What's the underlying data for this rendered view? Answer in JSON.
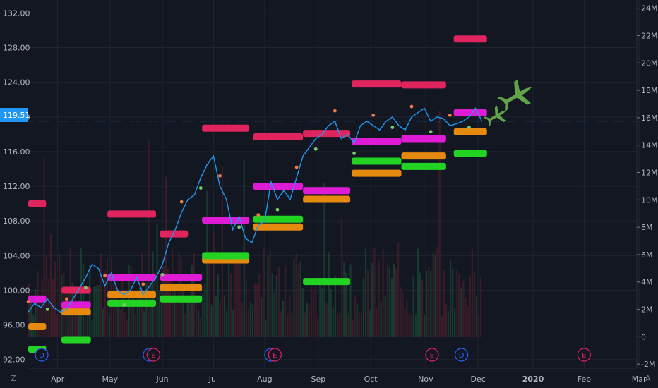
{
  "chart_data": {
    "type": "line",
    "y_left_ticks": [
      "132.00",
      "128.00",
      "124.00",
      "120.00",
      "116.00",
      "112.00",
      "108.00",
      "104.00",
      "100.00",
      "96.00",
      "92.00"
    ],
    "y_left_range": [
      91.0,
      133.5
    ],
    "y_right_ticks": [
      "24M",
      "22M",
      "20M",
      "18M",
      "16M",
      "14M",
      "12M",
      "10M",
      "8M",
      "6M",
      "4M",
      "2M",
      "0",
      "-2M"
    ],
    "y_right_range": [
      -2.3,
      24.6
    ],
    "x_months": [
      "Apr",
      "May",
      "Jun",
      "Jul",
      "Aug",
      "Sep",
      "Oct",
      "Nov",
      "Dec",
      "2020",
      "Feb",
      "Mar"
    ],
    "last_price_label": "119.51",
    "last_price": 119.51,
    "corner_left": "Z",
    "corner_right": "A",
    "events": [
      {
        "label": "D",
        "t": 10.5,
        "color": "#2962ff"
      },
      {
        "label": "D",
        "t": 95.0,
        "color": "#2962ff"
      },
      {
        "label": "E",
        "t": 98.0,
        "color": "#e91e63"
      },
      {
        "label": "D",
        "t": 190.0,
        "color": "#2962ff"
      },
      {
        "label": "E",
        "t": 193.0,
        "color": "#e91e63"
      },
      {
        "label": "E",
        "t": 316.0,
        "color": "#e91e63"
      },
      {
        "label": "D",
        "t": 339.0,
        "color": "#2962ff"
      },
      {
        "label": "E",
        "t": 435.0,
        "color": "#e91e63"
      }
    ],
    "price_series": {
      "color": "#2196f3",
      "t": [
        0,
        5,
        10,
        15,
        20,
        25,
        30,
        35,
        40,
        45,
        50,
        55,
        60,
        65,
        70,
        75,
        80,
        85,
        90,
        95,
        100,
        105,
        110,
        115,
        120,
        125,
        130,
        135,
        140,
        145,
        150,
        155,
        160,
        165,
        170,
        175,
        180,
        185,
        190,
        195,
        200,
        205,
        210,
        215,
        220,
        225,
        230,
        235,
        240,
        245,
        250,
        255,
        260,
        265,
        270,
        275,
        280,
        285,
        290,
        295,
        300,
        305,
        310,
        315,
        320,
        325,
        330,
        335,
        340,
        345,
        350,
        355
      ],
      "values": [
        97.5,
        98.5,
        98.0,
        99.0,
        98.0,
        97.5,
        97.8,
        99.0,
        100.2,
        101.5,
        103.0,
        102.5,
        100.5,
        102.0,
        100.0,
        99.5,
        100.0,
        101.5,
        99.5,
        100.5,
        101.5,
        103.0,
        105.5,
        107.0,
        109.0,
        110.5,
        111.0,
        113.0,
        114.5,
        115.5,
        112.0,
        110.5,
        107.0,
        108.5,
        106.0,
        105.5,
        107.5,
        108.0,
        112.5,
        110.5,
        111.5,
        110.5,
        113.0,
        115.5,
        116.5,
        117.5,
        118.0,
        119.0,
        119.5,
        117.5,
        118.0,
        117.0,
        119.0,
        119.5,
        119.0,
        118.5,
        119.5,
        120.0,
        119.0,
        118.5,
        120.0,
        120.5,
        121.0,
        119.5,
        120.0,
        119.8,
        119.0,
        119.2,
        119.5,
        120.0,
        121.0,
        119.51
      ]
    },
    "levels": [
      {
        "name": "crimson",
        "color": "#e0245e",
        "bars": [
          [
            0,
            14,
            110.0
          ],
          [
            26,
            49,
            100.0
          ],
          [
            62,
            100,
            108.8
          ],
          [
            103,
            125,
            106.5
          ],
          [
            136,
            173,
            118.7
          ],
          [
            176,
            215,
            117.7
          ],
          [
            215,
            252,
            118.1
          ],
          [
            253,
            292,
            123.8
          ],
          [
            292,
            327,
            123.7
          ],
          [
            333,
            359,
            129.0
          ]
        ]
      },
      {
        "name": "magenta",
        "color": "#e01bd6",
        "bars": [
          [
            0,
            14,
            99.0
          ],
          [
            26,
            49,
            98.3
          ],
          [
            62,
            100,
            101.5
          ],
          [
            103,
            136,
            101.5
          ],
          [
            136,
            173,
            108.1
          ],
          [
            176,
            215,
            112.0
          ],
          [
            215,
            252,
            111.5
          ],
          [
            253,
            292,
            117.2
          ],
          [
            292,
            327,
            117.5
          ],
          [
            333,
            359,
            120.5
          ]
        ]
      },
      {
        "name": "orange",
        "color": "#e5890f",
        "bars": [
          [
            0,
            14,
            95.8
          ],
          [
            26,
            49,
            97.5
          ],
          [
            62,
            100,
            99.5
          ],
          [
            103,
            136,
            100.3
          ],
          [
            136,
            173,
            103.5
          ],
          [
            176,
            215,
            107.3
          ],
          [
            215,
            252,
            110.5
          ],
          [
            253,
            292,
            113.5
          ],
          [
            292,
            327,
            115.5
          ],
          [
            333,
            359,
            118.3
          ]
        ]
      },
      {
        "name": "green",
        "color": "#22d324",
        "bars": [
          [
            0,
            14,
            93.2
          ],
          [
            26,
            49,
            94.3
          ],
          [
            62,
            100,
            98.5
          ],
          [
            103,
            136,
            99.0
          ],
          [
            136,
            173,
            104.0
          ],
          [
            176,
            215,
            108.2
          ],
          [
            215,
            252,
            101.0
          ],
          [
            253,
            292,
            114.9
          ],
          [
            292,
            327,
            114.3
          ],
          [
            333,
            359,
            115.8
          ]
        ]
      }
    ]
  }
}
